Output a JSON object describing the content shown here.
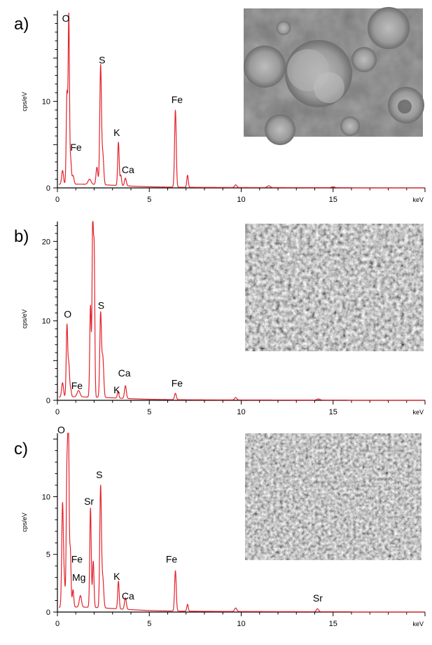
{
  "chart_data": [
    {
      "type": "line",
      "panel_label": "a)",
      "xlabel": "keV",
      "ylabel": "cps/eV",
      "x_ticks": [
        0,
        5,
        10,
        15
      ],
      "y_ticks": [
        0,
        10
      ],
      "xlim": [
        0,
        20
      ],
      "ylim": [
        0,
        20.5
      ],
      "series": [
        {
          "color": "#e3232c",
          "peaks": [
            {
              "x": 0.28,
              "y": 1.6,
              "w": 0.05
            },
            {
              "x": 0.52,
              "y": 10.5,
              "w": 0.04
            },
            {
              "x": 0.62,
              "y": 19.2,
              "w": 0.035
            },
            {
              "x": 0.72,
              "y": 2.8,
              "w": 0.04
            },
            {
              "x": 0.85,
              "y": 1.0,
              "w": 0.05
            },
            {
              "x": 1.75,
              "y": 0.6,
              "w": 0.08
            },
            {
              "x": 2.15,
              "y": 2.0,
              "w": 0.05
            },
            {
              "x": 2.35,
              "y": 13.7,
              "w": 0.045
            },
            {
              "x": 2.47,
              "y": 3.5,
              "w": 0.05
            },
            {
              "x": 3.32,
              "y": 5.0,
              "w": 0.04
            },
            {
              "x": 3.45,
              "y": 1.2,
              "w": 0.04
            },
            {
              "x": 3.7,
              "y": 0.9,
              "w": 0.05
            },
            {
              "x": 6.42,
              "y": 8.9,
              "w": 0.045
            },
            {
              "x": 7.08,
              "y": 1.4,
              "w": 0.04
            },
            {
              "x": 9.7,
              "y": 0.3,
              "w": 0.06
            },
            {
              "x": 11.5,
              "y": 0.2,
              "w": 0.08
            },
            {
              "x": 15.0,
              "y": 0.1,
              "w": 0.08
            }
          ],
          "background": 0.3,
          "cutoff": 16.0,
          "tail": 0.15
        }
      ],
      "annotations": [
        {
          "text": "O",
          "x": 0.25,
          "y": 19.2
        },
        {
          "text": "S",
          "x": 2.25,
          "y": 14.4
        },
        {
          "text": "Fe",
          "x": 0.7,
          "y": 4.3
        },
        {
          "text": "K",
          "x": 3.05,
          "y": 6.0
        },
        {
          "text": "Ca",
          "x": 3.5,
          "y": 1.7
        },
        {
          "text": "Fe",
          "x": 6.2,
          "y": 9.8
        }
      ]
    },
    {
      "type": "line",
      "panel_label": "b)",
      "xlabel": "keV",
      "ylabel": "cps/eV",
      "x_ticks": [
        0,
        5,
        10,
        15
      ],
      "y_ticks": [
        0,
        10,
        20
      ],
      "xlim": [
        0,
        20
      ],
      "ylim": [
        0,
        22.5
      ],
      "series": [
        {
          "color": "#e3232c",
          "peaks": [
            {
              "x": 0.28,
              "y": 1.8,
              "w": 0.05
            },
            {
              "x": 0.52,
              "y": 9.0,
              "w": 0.04
            },
            {
              "x": 0.62,
              "y": 4.0,
              "w": 0.04
            },
            {
              "x": 0.72,
              "y": 1.0,
              "w": 0.04
            },
            {
              "x": 1.15,
              "y": 0.8,
              "w": 0.08
            },
            {
              "x": 1.8,
              "y": 11.5,
              "w": 0.04
            },
            {
              "x": 1.92,
              "y": 21.8,
              "w": 0.035
            },
            {
              "x": 2.0,
              "y": 18.0,
              "w": 0.035
            },
            {
              "x": 2.35,
              "y": 10.5,
              "w": 0.045
            },
            {
              "x": 2.47,
              "y": 5.0,
              "w": 0.05
            },
            {
              "x": 3.3,
              "y": 0.9,
              "w": 0.04
            },
            {
              "x": 3.7,
              "y": 1.6,
              "w": 0.05
            },
            {
              "x": 6.42,
              "y": 0.8,
              "w": 0.05
            },
            {
              "x": 9.7,
              "y": 0.3,
              "w": 0.06
            },
            {
              "x": 14.2,
              "y": 0.15,
              "w": 0.08
            }
          ],
          "background": 0.3,
          "cutoff": 15.8,
          "tail": 0.15
        }
      ],
      "annotations": [
        {
          "text": "O",
          "x": 0.35,
          "y": 10.4
        },
        {
          "text": "S",
          "x": 2.2,
          "y": 11.5
        },
        {
          "text": "Fe",
          "x": 0.75,
          "y": 1.4
        },
        {
          "text": "Ca",
          "x": 3.3,
          "y": 3.0
        },
        {
          "text": "K",
          "x": 3.05,
          "y": 0.9
        },
        {
          "text": "Fe",
          "x": 6.2,
          "y": 1.7
        }
      ]
    },
    {
      "type": "line",
      "panel_label": "c)",
      "xlabel": "keV",
      "ylabel": "cps/eV",
      "x_ticks": [
        0,
        5,
        10,
        15
      ],
      "y_ticks": [
        0,
        5,
        10
      ],
      "xlim": [
        0,
        20
      ],
      "ylim": [
        0,
        15.5
      ],
      "series": [
        {
          "color": "#e3232c",
          "peaks": [
            {
              "x": 0.28,
              "y": 9.0,
              "w": 0.045
            },
            {
              "x": 0.38,
              "y": 2.0,
              "w": 0.04
            },
            {
              "x": 0.52,
              "y": 12.0,
              "w": 0.04
            },
            {
              "x": 0.6,
              "y": 15.2,
              "w": 0.035
            },
            {
              "x": 0.7,
              "y": 5.0,
              "w": 0.04
            },
            {
              "x": 0.85,
              "y": 1.5,
              "w": 0.04
            },
            {
              "x": 1.25,
              "y": 1.0,
              "w": 0.06
            },
            {
              "x": 1.8,
              "y": 8.6,
              "w": 0.04
            },
            {
              "x": 1.95,
              "y": 4.0,
              "w": 0.04
            },
            {
              "x": 2.35,
              "y": 10.5,
              "w": 0.045
            },
            {
              "x": 2.47,
              "y": 2.5,
              "w": 0.05
            },
            {
              "x": 3.32,
              "y": 2.4,
              "w": 0.04
            },
            {
              "x": 3.7,
              "y": 1.0,
              "w": 0.05
            },
            {
              "x": 6.42,
              "y": 3.5,
              "w": 0.045
            },
            {
              "x": 7.08,
              "y": 0.6,
              "w": 0.04
            },
            {
              "x": 9.7,
              "y": 0.3,
              "w": 0.06
            },
            {
              "x": 14.15,
              "y": 0.25,
              "w": 0.06
            }
          ],
          "background": 0.3,
          "cutoff": 16.0,
          "tail": 0.15
        }
      ],
      "annotations": [
        {
          "text": "O",
          "x": 0.0,
          "y": 15.5
        },
        {
          "text": "S",
          "x": 2.1,
          "y": 11.6
        },
        {
          "text": "Sr",
          "x": 1.45,
          "y": 9.3
        },
        {
          "text": "Fe",
          "x": 0.75,
          "y": 4.3
        },
        {
          "text": "Mg",
          "x": 0.8,
          "y": 2.7
        },
        {
          "text": "K",
          "x": 3.05,
          "y": 2.8
        },
        {
          "text": "Ca",
          "x": 3.5,
          "y": 1.1
        },
        {
          "text": "Fe",
          "x": 5.9,
          "y": 4.3
        },
        {
          "text": "Sr",
          "x": 13.9,
          "y": 0.9
        }
      ]
    }
  ]
}
